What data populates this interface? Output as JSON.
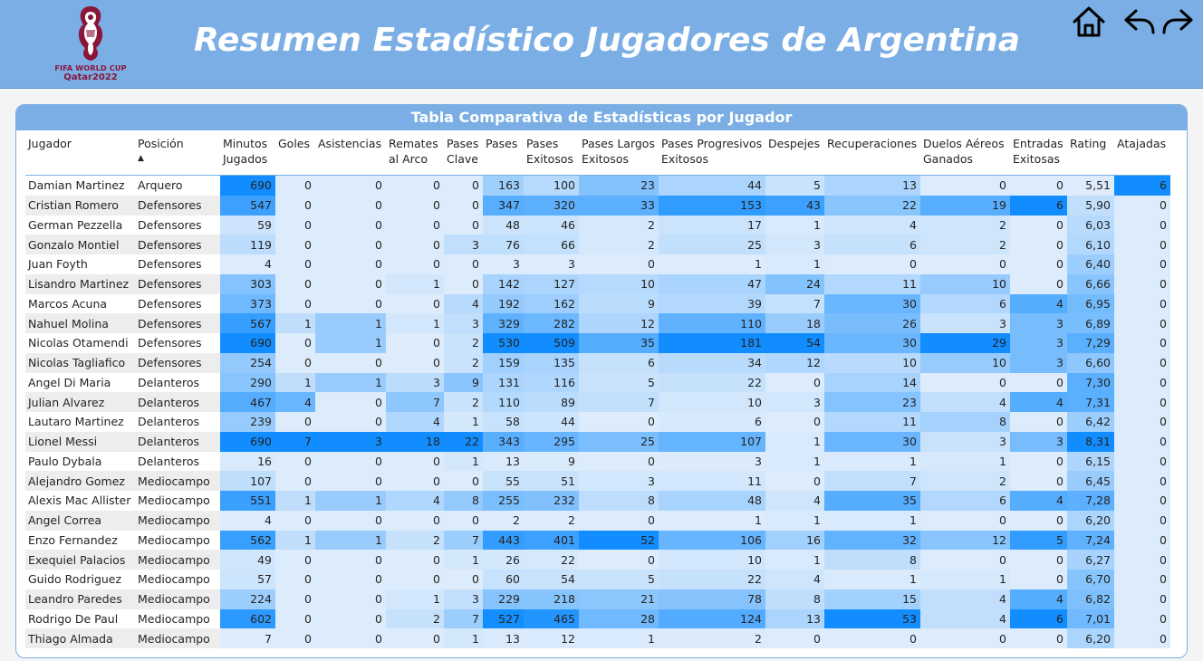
{
  "header": {
    "title": "Resumen Estadístico Jugadores de Argentina",
    "logo_line1": "FIFA WORLD CUP",
    "logo_line2": "Qatar2022",
    "nav": [
      "home-icon",
      "back-arrow-icon",
      "forward-arrow-icon"
    ]
  },
  "panel": {
    "title": "Tabla Comparativa de Estadísticas por Jugador"
  },
  "colors": {
    "header_bg": "#7aaee4",
    "cell_min": "#ddecfc",
    "cell_max": "#118dff",
    "logo": "#8a1538"
  },
  "table": {
    "sorted_column": "Posición",
    "columns": [
      "Jugador",
      "Posición",
      "Minutos Jugados",
      "Goles",
      "Asistencias",
      "Remates al Arco",
      "Pases Clave",
      "Pases",
      "Pases Exitosos",
      "Pases Largos Exitosos",
      "Pases Progresivos Exitosos",
      "Despejes",
      "Recuperaciones",
      "Duelos Aéreos Ganados",
      "Entradas Exitosas",
      "Rating",
      "Atajadas"
    ],
    "rows": [
      [
        "Damian Martinez",
        "Arquero",
        "690",
        "0",
        "0",
        "0",
        "0",
        "163",
        "100",
        "23",
        "44",
        "5",
        "13",
        "0",
        "0",
        "5,51",
        "6"
      ],
      [
        "Cristian Romero",
        "Defensores",
        "547",
        "0",
        "0",
        "0",
        "0",
        "347",
        "320",
        "33",
        "153",
        "43",
        "22",
        "19",
        "6",
        "5,90",
        "0"
      ],
      [
        "German Pezzella",
        "Defensores",
        "59",
        "0",
        "0",
        "0",
        "0",
        "48",
        "46",
        "2",
        "17",
        "1",
        "4",
        "2",
        "0",
        "6,03",
        "0"
      ],
      [
        "Gonzalo Montiel",
        "Defensores",
        "119",
        "0",
        "0",
        "0",
        "3",
        "76",
        "66",
        "2",
        "25",
        "3",
        "6",
        "2",
        "0",
        "6,10",
        "0"
      ],
      [
        "Juan Foyth",
        "Defensores",
        "4",
        "0",
        "0",
        "0",
        "0",
        "3",
        "3",
        "0",
        "1",
        "1",
        "0",
        "0",
        "0",
        "6,40",
        "0"
      ],
      [
        "Lisandro Martinez",
        "Defensores",
        "303",
        "0",
        "0",
        "1",
        "0",
        "142",
        "127",
        "10",
        "47",
        "24",
        "11",
        "10",
        "0",
        "6,66",
        "0"
      ],
      [
        "Marcos Acuna",
        "Defensores",
        "373",
        "0",
        "0",
        "0",
        "4",
        "192",
        "162",
        "9",
        "39",
        "7",
        "30",
        "6",
        "4",
        "6,95",
        "0"
      ],
      [
        "Nahuel Molina",
        "Defensores",
        "567",
        "1",
        "1",
        "1",
        "3",
        "329",
        "282",
        "12",
        "110",
        "18",
        "26",
        "3",
        "3",
        "6,89",
        "0"
      ],
      [
        "Nicolas Otamendi",
        "Defensores",
        "690",
        "0",
        "1",
        "0",
        "2",
        "530",
        "509",
        "35",
        "181",
        "54",
        "30",
        "29",
        "3",
        "7,29",
        "0"
      ],
      [
        "Nicolas Tagliafico",
        "Defensores",
        "254",
        "0",
        "0",
        "0",
        "2",
        "159",
        "135",
        "6",
        "34",
        "12",
        "10",
        "10",
        "3",
        "6,60",
        "0"
      ],
      [
        "Angel Di Maria",
        "Delanteros",
        "290",
        "1",
        "1",
        "3",
        "9",
        "131",
        "116",
        "5",
        "22",
        "0",
        "14",
        "0",
        "0",
        "7,30",
        "0"
      ],
      [
        "Julian Alvarez",
        "Delanteros",
        "467",
        "4",
        "0",
        "7",
        "2",
        "110",
        "89",
        "7",
        "10",
        "3",
        "23",
        "4",
        "4",
        "7,31",
        "0"
      ],
      [
        "Lautaro Martinez",
        "Delanteros",
        "239",
        "0",
        "0",
        "4",
        "1",
        "58",
        "44",
        "0",
        "6",
        "0",
        "11",
        "8",
        "0",
        "6,42",
        "0"
      ],
      [
        "Lionel Messi",
        "Delanteros",
        "690",
        "7",
        "3",
        "18",
        "22",
        "343",
        "295",
        "25",
        "107",
        "1",
        "30",
        "3",
        "3",
        "8,31",
        "0"
      ],
      [
        "Paulo Dybala",
        "Delanteros",
        "16",
        "0",
        "0",
        "0",
        "1",
        "13",
        "9",
        "0",
        "3",
        "1",
        "1",
        "1",
        "0",
        "6,15",
        "0"
      ],
      [
        "Alejandro Gomez",
        "Mediocampo",
        "107",
        "0",
        "0",
        "0",
        "0",
        "55",
        "51",
        "3",
        "11",
        "0",
        "7",
        "2",
        "0",
        "6,45",
        "0"
      ],
      [
        "Alexis Mac Allister",
        "Mediocampo",
        "551",
        "1",
        "1",
        "4",
        "8",
        "255",
        "232",
        "8",
        "48",
        "4",
        "35",
        "6",
        "4",
        "7,28",
        "0"
      ],
      [
        "Angel Correa",
        "Mediocampo",
        "4",
        "0",
        "0",
        "0",
        "0",
        "2",
        "2",
        "0",
        "1",
        "1",
        "1",
        "0",
        "0",
        "6,20",
        "0"
      ],
      [
        "Enzo Fernandez",
        "Mediocampo",
        "562",
        "1",
        "1",
        "2",
        "7",
        "443",
        "401",
        "52",
        "106",
        "16",
        "32",
        "12",
        "5",
        "7,24",
        "0"
      ],
      [
        "Exequiel Palacios",
        "Mediocampo",
        "49",
        "0",
        "0",
        "0",
        "1",
        "26",
        "22",
        "0",
        "10",
        "1",
        "8",
        "0",
        "0",
        "6,27",
        "0"
      ],
      [
        "Guido Rodriguez",
        "Mediocampo",
        "57",
        "0",
        "0",
        "0",
        "0",
        "60",
        "54",
        "5",
        "22",
        "4",
        "1",
        "1",
        "0",
        "6,70",
        "0"
      ],
      [
        "Leandro Paredes",
        "Mediocampo",
        "224",
        "0",
        "0",
        "1",
        "3",
        "229",
        "218",
        "21",
        "78",
        "8",
        "15",
        "4",
        "4",
        "6,82",
        "0"
      ],
      [
        "Rodrigo De Paul",
        "Mediocampo",
        "602",
        "0",
        "0",
        "2",
        "7",
        "527",
        "465",
        "28",
        "124",
        "13",
        "53",
        "4",
        "6",
        "7,01",
        "0"
      ],
      [
        "Thiago Almada",
        "Mediocampo",
        "7",
        "0",
        "0",
        "0",
        "1",
        "13",
        "12",
        "1",
        "2",
        "0",
        "0",
        "0",
        "0",
        "6,20",
        "0"
      ]
    ]
  }
}
